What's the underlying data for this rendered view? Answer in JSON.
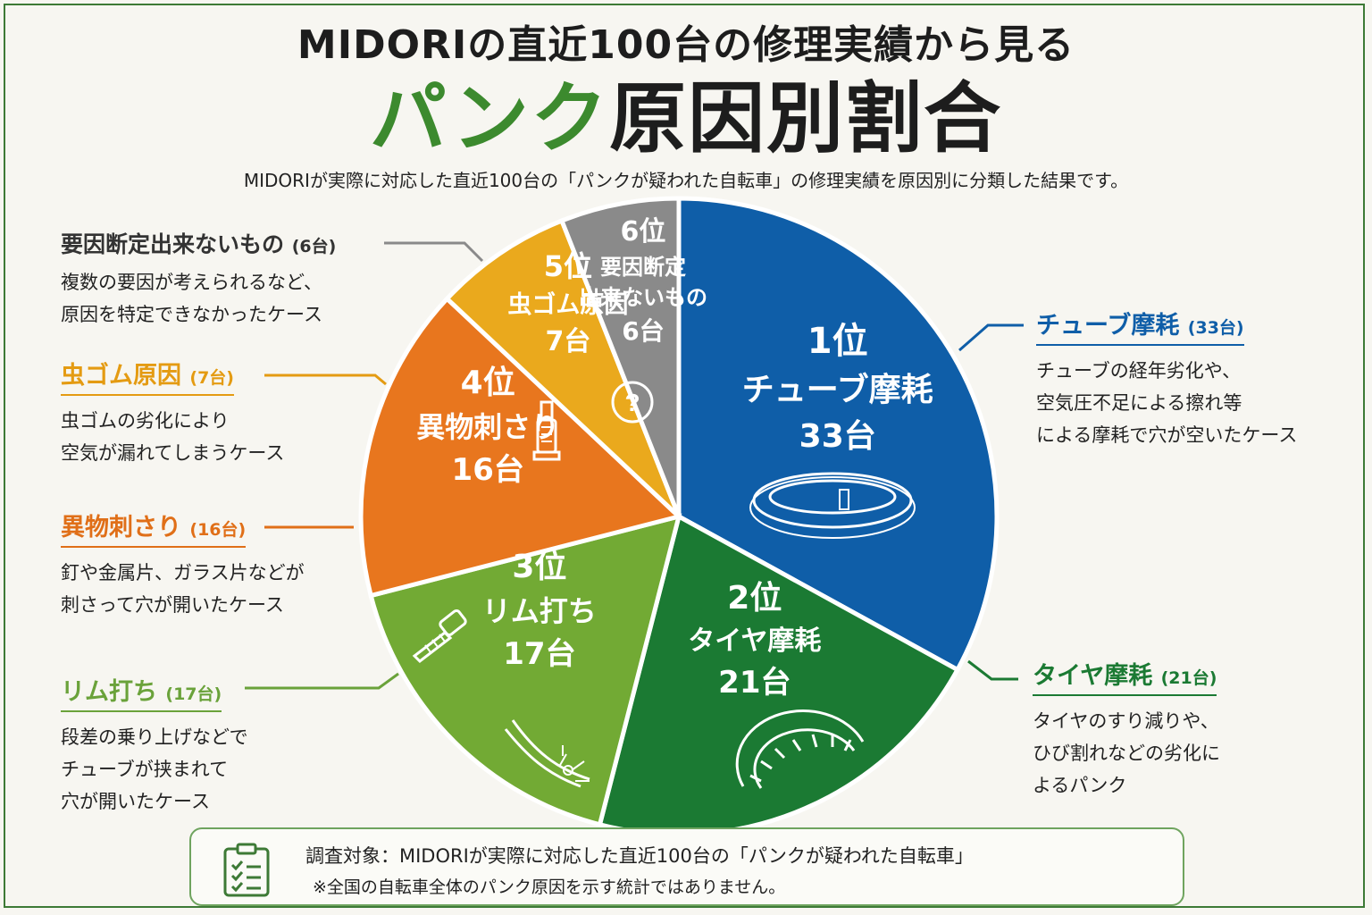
{
  "title_line1": "MIDORIの直近100台の修理実績から見る",
  "title_line2_green": "パンク",
  "title_line2_dark": "原因別割合",
  "subtitle": "MIDORIが実際に対応した直近100台の「パンクが疑われた自転車」の修理実績を原因別に分類した結果です。",
  "chart_data": {
    "type": "pie",
    "title": "パンク原因別割合",
    "total": 100,
    "slices": [
      {
        "rank": "1位",
        "name": "チューブ摩耗",
        "value": 33,
        "count_label": "33台",
        "color": "#0f5ea8",
        "icon": "tube-icon"
      },
      {
        "rank": "2位",
        "name": "タイヤ摩耗",
        "value": 21,
        "count_label": "21台",
        "color": "#1b7a33",
        "icon": "tire-icon"
      },
      {
        "rank": "3位",
        "name": "リム打ち",
        "value": 17,
        "count_label": "17台",
        "color": "#72aa34",
        "icon": "rim-impact-icon"
      },
      {
        "rank": "4位",
        "name": "異物刺さり",
        "value": 16,
        "count_label": "16台",
        "color": "#e8761e",
        "icon": "screw-icon"
      },
      {
        "rank": "5位",
        "name": "虫ゴム原因",
        "value": 7,
        "count_label": "7台",
        "color": "#eaa91d",
        "icon": "valve-icon"
      },
      {
        "rank": "6位",
        "name_lines": [
          "要因断定",
          "出来ないもの"
        ],
        "name": "要因断定出来ないもの",
        "value": 6,
        "count_label": "6台",
        "color": "#8a8a8a",
        "icon": "question-icon"
      }
    ]
  },
  "callouts": [
    {
      "id": "tube",
      "title": "チューブ摩耗",
      "count": "(33台)",
      "color": "#0f5ea8",
      "desc": [
        "チューブの経年劣化や、",
        "空気圧不足による擦れ等",
        "による摩耗で穴が空いたケース"
      ]
    },
    {
      "id": "tire",
      "title": "タイヤ摩耗",
      "count": "(21台)",
      "color": "#1b7a33",
      "desc": [
        "タイヤのすり減りや、",
        "ひび割れなどの劣化に",
        "よるパンク"
      ]
    },
    {
      "id": "rim",
      "title": "リム打ち",
      "count": "(17台)",
      "color": "#6aa23a",
      "desc": [
        "段差の乗り上げなどで",
        "チューブが挟まれて",
        "穴が開いたケース"
      ]
    },
    {
      "id": "foreign",
      "title": "異物刺さり",
      "count": "(16台)",
      "color": "#e06f18",
      "desc": [
        "釘や金属片、ガラス片などが",
        "刺さって穴が開いたケース"
      ]
    },
    {
      "id": "valve",
      "title": "虫ゴム原因",
      "count": "(7台)",
      "color": "#e49b12",
      "desc": [
        "虫ゴムの劣化により",
        "空気が漏れてしまうケース"
      ]
    },
    {
      "id": "unknown",
      "title": "要因断定出来ないもの",
      "count": "(6台)",
      "color": "#333333",
      "desc": [
        "複数の要因が考えられるなど、",
        "原因を特定できなかったケース"
      ]
    }
  ],
  "note": {
    "icon": "clipboard-checklist-icon",
    "line1": "調査対象：MIDORIが実際に対応した直近100台の「パンクが疑われた自転車」",
    "line2": "※全国の自転車全体のパンク原因を示す統計ではありません。"
  }
}
